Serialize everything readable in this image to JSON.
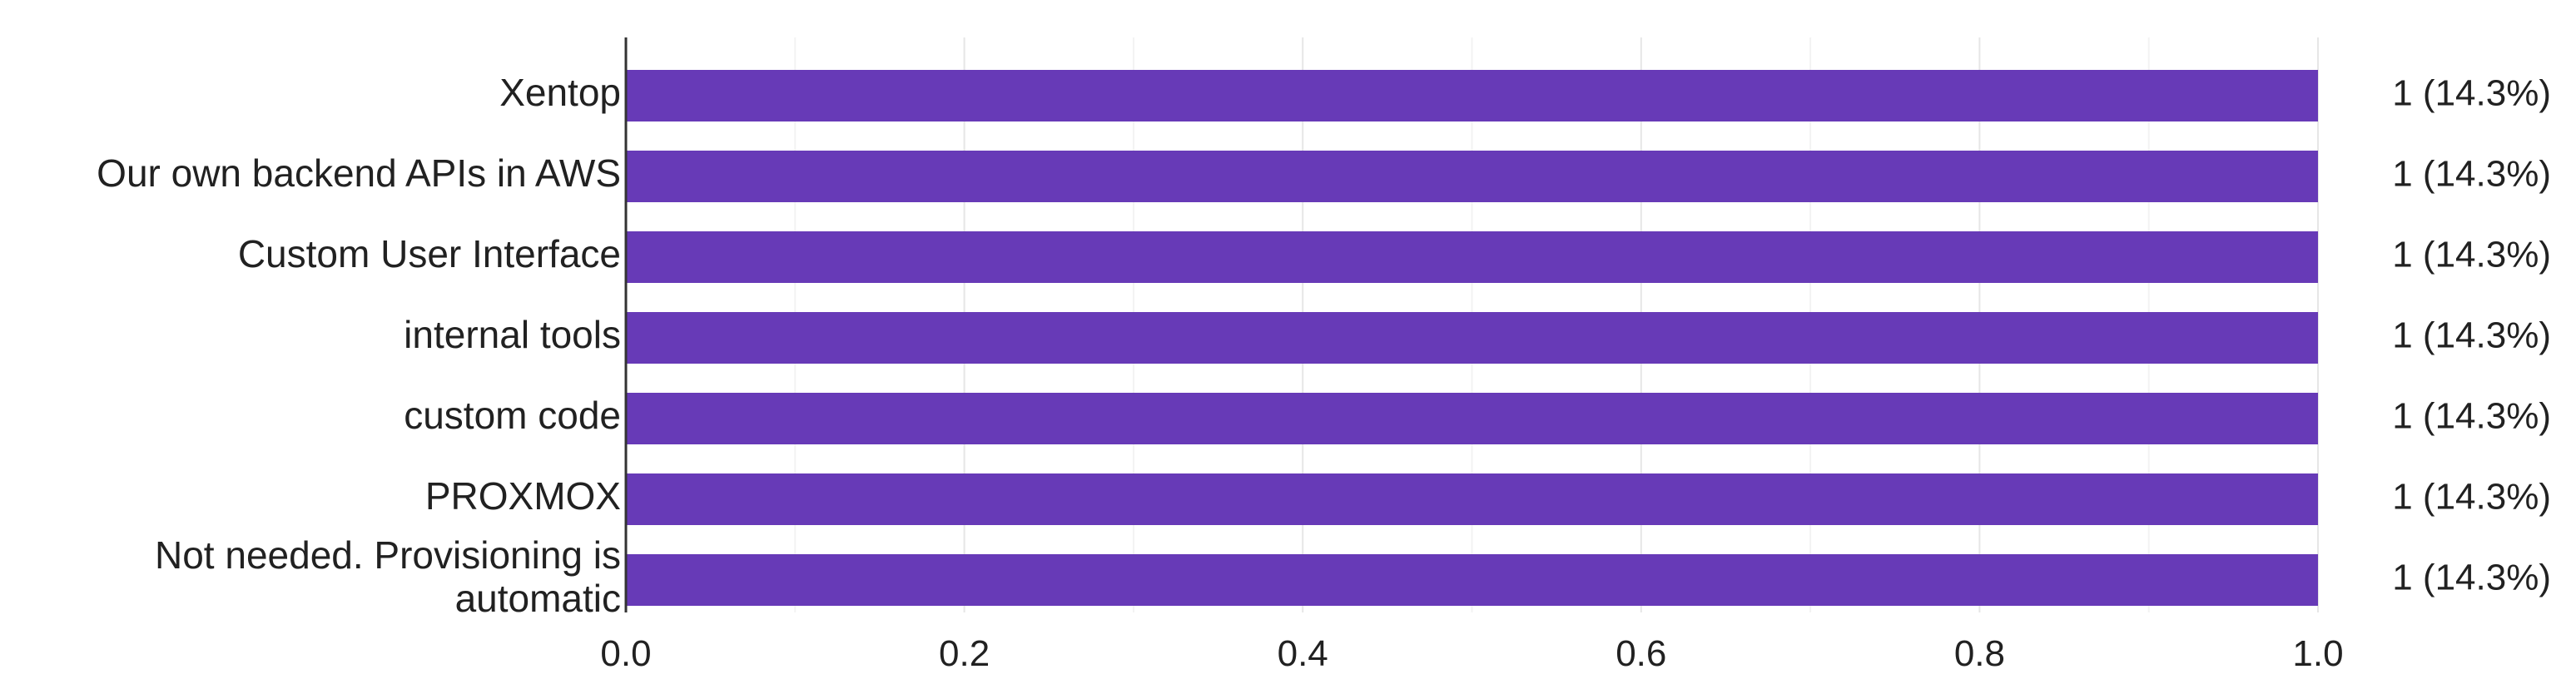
{
  "chart_data": {
    "type": "bar",
    "orientation": "horizontal",
    "categories": [
      [
        "Xentop"
      ],
      [
        "Our own backend APIs in AWS"
      ],
      [
        "Custom User Interface"
      ],
      [
        "internal tools"
      ],
      [
        "custom code"
      ],
      [
        "PROXMOX"
      ],
      [
        "Not needed. Provisioning is",
        "automatic"
      ]
    ],
    "values": [
      1,
      1,
      1,
      1,
      1,
      1,
      1
    ],
    "data_labels": [
      "1 (14.3%)",
      "1 (14.3%)",
      "1 (14.3%)",
      "1 (14.3%)",
      "1 (14.3%)",
      "1 (14.3%)",
      "1 (14.3%)"
    ],
    "xlim": [
      0,
      1
    ],
    "x_ticks": [
      "0.0",
      "0.2",
      "0.4",
      "0.6",
      "0.8",
      "1.0"
    ],
    "title": "",
    "xlabel": "",
    "ylabel": "",
    "grid": true,
    "legend": "none",
    "bar_color": "#673ab7"
  }
}
